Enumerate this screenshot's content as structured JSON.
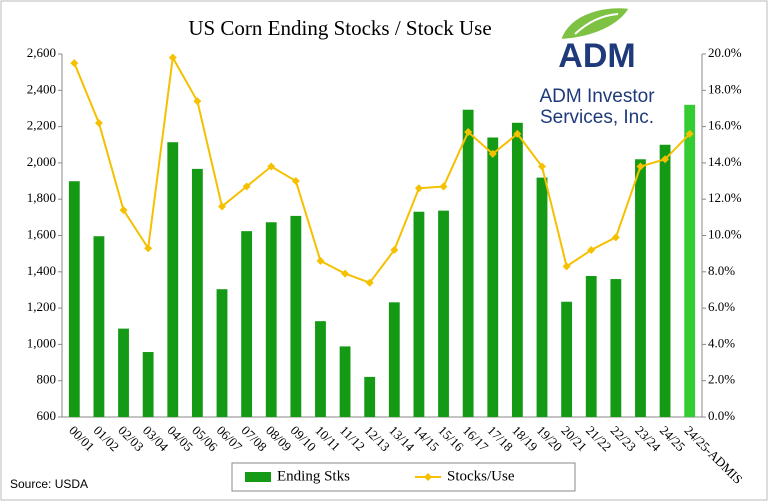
{
  "chart_data": {
    "type": "bar_line",
    "title": "US Corn Ending Stocks / Stock Use",
    "source": "Source: USDA",
    "logo": {
      "name": "ADM",
      "tagline": [
        "ADM Investor",
        "Services, Inc."
      ]
    },
    "categories": [
      "00/01",
      "01/02",
      "02/03",
      "03/04",
      "04/05",
      "05/06",
      "06/07",
      "07/08",
      "08/09",
      "09/10",
      "10/11",
      "11/12",
      "12/13",
      "13/14",
      "14/15",
      "15/16",
      "16/17",
      "17/18",
      "18/19",
      "19/20",
      "20/21",
      "21/22",
      "22/23",
      "23/24",
      "24/25",
      "24/25-ADMIS"
    ],
    "series": [
      {
        "name": "Ending Stks",
        "kind": "bar",
        "color": "#159a15",
        "colors": [
          "#159a15",
          "#159a15",
          "#159a15",
          "#159a15",
          "#159a15",
          "#159a15",
          "#159a15",
          "#159a15",
          "#159a15",
          "#159a15",
          "#159a15",
          "#159a15",
          "#159a15",
          "#159a15",
          "#159a15",
          "#159a15",
          "#159a15",
          "#159a15",
          "#159a15",
          "#159a15",
          "#159a15",
          "#159a15",
          "#159a15",
          "#159a15",
          "#159a15",
          "#33cc33"
        ],
        "values": [
          1899,
          1596,
          1087,
          958,
          2114,
          1967,
          1304,
          1624,
          1673,
          1708,
          1128,
          989,
          821,
          1232,
          1731,
          1737,
          2293,
          2140,
          2221,
          1919,
          1235,
          1377,
          1360,
          2020,
          2100,
          2320
        ]
      },
      {
        "name": "Stocks/Use",
        "kind": "line",
        "axis": "y2",
        "color": "#f5c000",
        "values": [
          19.5,
          16.2,
          11.4,
          9.3,
          19.8,
          17.4,
          11.6,
          12.7,
          13.8,
          13.0,
          8.6,
          7.9,
          7.4,
          9.2,
          12.6,
          12.7,
          15.7,
          14.5,
          15.6,
          13.8,
          8.3,
          9.2,
          9.9,
          13.8,
          14.2,
          15.6
        ]
      }
    ],
    "ylim": [
      600,
      2600
    ],
    "yticks": [
      {
        "value": 600,
        "label": "600"
      },
      {
        "value": 800,
        "label": "800"
      },
      {
        "value": 1000,
        "label": "1,000"
      },
      {
        "value": 1200,
        "label": "1,200"
      },
      {
        "value": 1400,
        "label": "1,400"
      },
      {
        "value": 1600,
        "label": "1,600"
      },
      {
        "value": 1800,
        "label": "1,800"
      },
      {
        "value": 2000,
        "label": "2,000"
      },
      {
        "value": 2200,
        "label": "2,200"
      },
      {
        "value": 2400,
        "label": "2,400"
      },
      {
        "value": 2600,
        "label": "2,600"
      }
    ],
    "y2lim": [
      0,
      20
    ],
    "y2ticks": [
      {
        "value": 0,
        "label": "0.0%"
      },
      {
        "value": 2,
        "label": "2.0%"
      },
      {
        "value": 4,
        "label": "4.0%"
      },
      {
        "value": 6,
        "label": "6.0%"
      },
      {
        "value": 8,
        "label": "8.0%"
      },
      {
        "value": 10,
        "label": "10.0%"
      },
      {
        "value": 12,
        "label": "12.0%"
      },
      {
        "value": 14,
        "label": "14.0%"
      },
      {
        "value": 16,
        "label": "16.0%"
      },
      {
        "value": 18,
        "label": "18.0%"
      },
      {
        "value": 20,
        "label": "20.0%"
      }
    ],
    "grid": false,
    "legend": "bottom"
  }
}
